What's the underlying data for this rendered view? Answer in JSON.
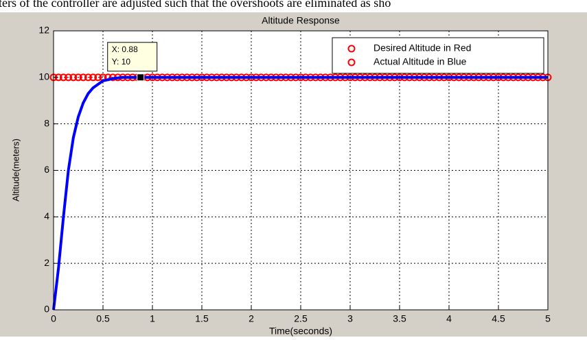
{
  "caption": "ters of the controller are adjusted such that the overshoots are eliminated as sho",
  "chart_data": {
    "type": "line",
    "title": "Altitude Response",
    "xlabel": "Time(seconds)",
    "ylabel": "Altitude(meters)",
    "xlim": [
      0,
      5
    ],
    "ylim": [
      0,
      12
    ],
    "xticks": [
      0,
      0.5,
      1,
      1.5,
      2,
      2.5,
      3,
      3.5,
      4,
      4.5,
      5
    ],
    "yticks": [
      0,
      2,
      4,
      6,
      8,
      10,
      12
    ],
    "grid": true,
    "legend": "upper right",
    "legend_marker_color": "#ff0000",
    "series": [
      {
        "name": "Desired Altitude in Red",
        "color": "#ff0000",
        "marker": "circle",
        "x": [
          0,
          0.05,
          0.1,
          0.15,
          0.2,
          0.25,
          0.3,
          0.35,
          0.4,
          0.45,
          0.5,
          0.55,
          0.6,
          0.65,
          0.7,
          0.75,
          0.8,
          0.85,
          0.9,
          0.95,
          1,
          1.05,
          1.1,
          1.15,
          1.2,
          1.25,
          1.3,
          1.35,
          1.4,
          1.45,
          1.5,
          1.55,
          1.6,
          1.65,
          1.7,
          1.75,
          1.8,
          1.85,
          1.9,
          1.95,
          2,
          2.05,
          2.1,
          2.15,
          2.2,
          2.25,
          2.3,
          2.35,
          2.4,
          2.45,
          2.5,
          2.55,
          2.6,
          2.65,
          2.7,
          2.75,
          2.8,
          2.85,
          2.9,
          2.95,
          3,
          3.05,
          3.1,
          3.15,
          3.2,
          3.25,
          3.3,
          3.35,
          3.4,
          3.45,
          3.5,
          3.55,
          3.6,
          3.65,
          3.7,
          3.75,
          3.8,
          3.85,
          3.9,
          3.95,
          4,
          4.05,
          4.1,
          4.15,
          4.2,
          4.25,
          4.3,
          4.35,
          4.4,
          4.45,
          4.5,
          4.55,
          4.6,
          4.65,
          4.7,
          4.75,
          4.8,
          4.85,
          4.9,
          4.95,
          5
        ],
        "values": [
          10,
          10,
          10,
          10,
          10,
          10,
          10,
          10,
          10,
          10,
          10,
          10,
          10,
          10,
          10,
          10,
          10,
          10,
          10,
          10,
          10,
          10,
          10,
          10,
          10,
          10,
          10,
          10,
          10,
          10,
          10,
          10,
          10,
          10,
          10,
          10,
          10,
          10,
          10,
          10,
          10,
          10,
          10,
          10,
          10,
          10,
          10,
          10,
          10,
          10,
          10,
          10,
          10,
          10,
          10,
          10,
          10,
          10,
          10,
          10,
          10,
          10,
          10,
          10,
          10,
          10,
          10,
          10,
          10,
          10,
          10,
          10,
          10,
          10,
          10,
          10,
          10,
          10,
          10,
          10,
          10,
          10,
          10,
          10,
          10,
          10,
          10,
          10,
          10,
          10,
          10,
          10,
          10,
          10,
          10,
          10,
          10,
          10,
          10,
          10,
          10
        ]
      },
      {
        "name": "Actual Altitude in Blue",
        "color": "#0000ff",
        "marker": "line",
        "x": [
          0,
          0.05,
          0.1,
          0.15,
          0.2,
          0.25,
          0.3,
          0.35,
          0.4,
          0.5,
          0.6,
          0.7,
          0.88,
          1,
          2,
          3,
          4,
          5
        ],
        "values": [
          0,
          1.8,
          4,
          6,
          7.4,
          8.3,
          8.9,
          9.3,
          9.55,
          9.85,
          9.95,
          10,
          10,
          10,
          10,
          10,
          10,
          10
        ]
      }
    ],
    "datatip": {
      "x": 0.88,
      "y": 10,
      "x_label": "X: 0.88",
      "y_label": "Y: 10"
    }
  }
}
